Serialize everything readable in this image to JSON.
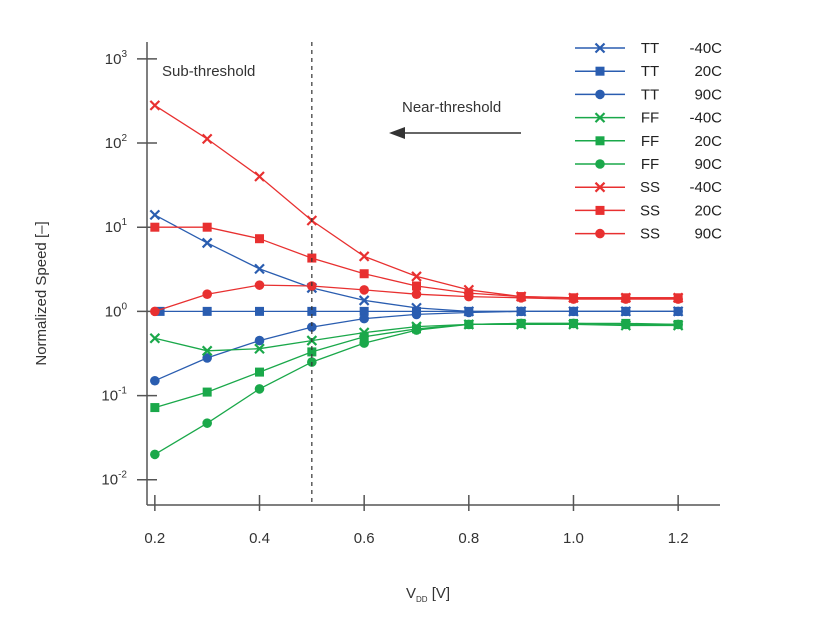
{
  "chart_data": {
    "type": "line",
    "title": "",
    "xlabel_main": "V",
    "xlabel_sub": "DD",
    "xlabel_unit": "[V]",
    "ylabel": "Normalized Speed [–]",
    "xlim": [
      0.185,
      1.28
    ],
    "ylim_log10": [
      -2.3,
      3.2
    ],
    "y_scale": "log",
    "x_ticks": [
      {
        "value": 0.2,
        "label": "0.2"
      },
      {
        "value": 0.4,
        "label": "0.4"
      },
      {
        "value": 0.6,
        "label": "0.6"
      },
      {
        "value": 0.8,
        "label": "0.8"
      },
      {
        "value": 1.0,
        "label": "1.0"
      },
      {
        "value": 1.2,
        "label": "1.2"
      }
    ],
    "y_ticks": [
      {
        "exp": -2,
        "base": "10",
        "sup": "-2"
      },
      {
        "exp": -1,
        "base": "10",
        "sup": "-1"
      },
      {
        "exp": 0,
        "base": "10",
        "sup": "0"
      },
      {
        "exp": 1,
        "base": "10",
        "sup": "1"
      },
      {
        "exp": 2,
        "base": "10",
        "sup": "2"
      },
      {
        "exp": 3,
        "base": "10",
        "sup": "3"
      }
    ],
    "threshold_line": {
      "x": 0.5
    },
    "annotations": {
      "sub_threshold": "Sub-threshold",
      "near_threshold": "Near-threshold"
    },
    "legend_position": "top-right",
    "series": [
      {
        "corner": "TT",
        "temp": "-40C",
        "color": "#2a5db0",
        "marker": "x",
        "x": [
          0.2,
          0.3,
          0.4,
          0.5,
          0.6,
          0.7,
          0.8,
          0.9,
          1.0,
          1.1,
          1.2
        ],
        "y": [
          14,
          6.5,
          3.2,
          1.9,
          1.35,
          1.1,
          1.0,
          1.0,
          1.0,
          1.0,
          1.0
        ]
      },
      {
        "corner": "TT",
        "temp": "20C",
        "color": "#2a5db0",
        "marker": "square",
        "x": [
          0.21,
          0.3,
          0.4,
          0.5,
          0.6,
          0.7,
          0.8,
          0.9,
          1.0,
          1.1,
          1.2
        ],
        "y": [
          1.0,
          1.0,
          1.0,
          1.0,
          1.0,
          1.0,
          1.0,
          1.0,
          1.0,
          1.0,
          1.0
        ]
      },
      {
        "corner": "TT",
        "temp": "90C",
        "color": "#2a5db0",
        "marker": "circle",
        "x": [
          0.2,
          0.3,
          0.4,
          0.5,
          0.6,
          0.7,
          0.8,
          0.9,
          1.0,
          1.1,
          1.2
        ],
        "y": [
          0.15,
          0.28,
          0.45,
          0.65,
          0.82,
          0.92,
          0.97,
          1.0,
          1.0,
          1.0,
          1.0
        ]
      },
      {
        "corner": "FF",
        "temp": "-40C",
        "color": "#1aa84a",
        "marker": "x",
        "x": [
          0.2,
          0.3,
          0.4,
          0.5,
          0.6,
          0.7,
          0.8,
          0.9,
          1.0,
          1.1,
          1.2
        ],
        "y": [
          0.48,
          0.34,
          0.36,
          0.45,
          0.56,
          0.66,
          0.7,
          0.7,
          0.7,
          0.68,
          0.68
        ]
      },
      {
        "corner": "FF",
        "temp": "20C",
        "color": "#1aa84a",
        "marker": "square",
        "x": [
          0.2,
          0.3,
          0.4,
          0.5,
          0.6,
          0.7,
          0.8,
          0.9,
          1.0,
          1.1,
          1.2
        ],
        "y": [
          0.072,
          0.11,
          0.19,
          0.33,
          0.5,
          0.62,
          0.7,
          0.72,
          0.72,
          0.72,
          0.7
        ]
      },
      {
        "corner": "FF",
        "temp": "90C",
        "color": "#1aa84a",
        "marker": "circle",
        "x": [
          0.2,
          0.3,
          0.4,
          0.5,
          0.6,
          0.7,
          0.8,
          0.9,
          1.0,
          1.1,
          1.2
        ],
        "y": [
          0.02,
          0.047,
          0.12,
          0.25,
          0.42,
          0.6,
          0.7,
          0.72,
          0.72,
          0.7,
          0.7
        ]
      },
      {
        "corner": "SS",
        "temp": "-40C",
        "color": "#e83030",
        "marker": "x",
        "x": [
          0.2,
          0.3,
          0.4,
          0.5,
          0.6,
          0.7,
          0.8,
          0.9,
          1.0,
          1.1,
          1.2
        ],
        "y": [
          280,
          112,
          40,
          12,
          4.5,
          2.6,
          1.8,
          1.5,
          1.45,
          1.45,
          1.45
        ]
      },
      {
        "corner": "SS",
        "temp": "20C",
        "color": "#e83030",
        "marker": "square",
        "x": [
          0.2,
          0.3,
          0.4,
          0.5,
          0.6,
          0.7,
          0.8,
          0.9,
          1.0,
          1.1,
          1.2
        ],
        "y": [
          10,
          10,
          7.3,
          4.3,
          2.8,
          2.0,
          1.65,
          1.5,
          1.45,
          1.45,
          1.45
        ]
      },
      {
        "corner": "SS",
        "temp": "90C",
        "color": "#e83030",
        "marker": "circle",
        "x": [
          0.2,
          0.3,
          0.4,
          0.5,
          0.6,
          0.7,
          0.8,
          0.9,
          1.0,
          1.1,
          1.2
        ],
        "y": [
          1.0,
          1.6,
          2.05,
          2.0,
          1.8,
          1.6,
          1.5,
          1.45,
          1.4,
          1.4,
          1.4
        ]
      }
    ]
  }
}
